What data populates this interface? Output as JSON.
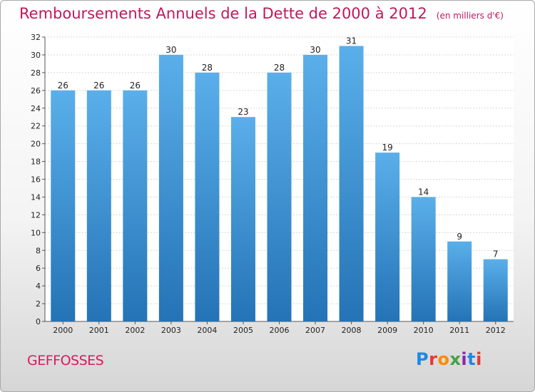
{
  "header": {
    "title": "Remboursements Annuels de la Dette de 2000 à 2012",
    "unit": "(en milliers d'€)"
  },
  "footer": {
    "commune": "GEFFOSSES",
    "logo_text": "Proxiti"
  },
  "colors": {
    "title": "#c2185b",
    "bar_top": "#5aafea",
    "bar_bottom": "#2473b6",
    "logo": [
      "#1e88e5",
      "#e53935",
      "#fb8c00",
      "#43a047",
      "#8e24aa",
      "#1e88e5",
      "#e53935"
    ]
  },
  "chart_data": {
    "type": "bar",
    "categories": [
      "2000",
      "2001",
      "2002",
      "2003",
      "2004",
      "2005",
      "2006",
      "2007",
      "2008",
      "2009",
      "2010",
      "2011",
      "2012"
    ],
    "values": [
      26,
      26,
      26,
      30,
      28,
      23,
      28,
      30,
      31,
      19,
      14,
      9,
      7
    ],
    "ylim": [
      0,
      32
    ],
    "yticks": [
      0,
      2,
      4,
      6,
      8,
      10,
      12,
      14,
      16,
      18,
      20,
      22,
      24,
      26,
      28,
      30,
      32
    ],
    "grid": true,
    "title": "Remboursements Annuels de la Dette de 2000 à 2012",
    "xlabel": "",
    "ylabel": ""
  }
}
